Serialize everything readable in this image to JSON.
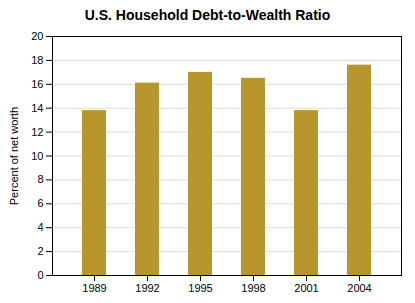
{
  "chart_data": {
    "type": "bar",
    "title": "U.S. Household Debt-to-Wealth Ratio",
    "categories": [
      "1989",
      "1992",
      "1995",
      "1998",
      "2001",
      "2004"
    ],
    "values": [
      13.8,
      16.1,
      17.0,
      16.5,
      13.8,
      17.6
    ],
    "color": "#b8962e",
    "ylabel": "Percent of net worth",
    "ylim": [
      0,
      20
    ],
    "yticks": [
      0,
      2,
      4,
      6,
      8,
      10,
      12,
      14,
      16,
      18,
      20
    ],
    "grid": true
  }
}
